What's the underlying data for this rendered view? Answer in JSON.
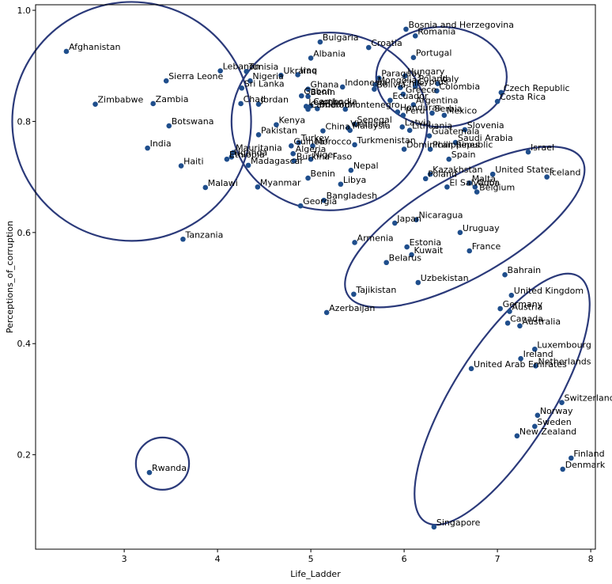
{
  "chart_data": {
    "type": "scatter",
    "xlabel": "Life_Ladder",
    "ylabel": "Perceptions_of_corruption",
    "xlim": [
      2.05,
      8.05
    ],
    "ylim": [
      0.03,
      1.01
    ],
    "xticks": [
      3,
      4,
      5,
      6,
      7,
      8
    ],
    "yticks": [
      0.2,
      0.4,
      0.6,
      0.8,
      1.0
    ],
    "xtick_labels": [
      "3",
      "4",
      "5",
      "6",
      "7",
      "8"
    ],
    "ytick_labels": [
      "0.2",
      "0.4",
      "0.6",
      "0.8",
      "1.0"
    ],
    "grid": false,
    "point_color": "#1f4e8c",
    "ellipse_color": "#2b3a7a",
    "points": [
      {
        "label": "Afghanistan",
        "x": 2.38,
        "y": 0.926
      },
      {
        "label": "Sierra Leone",
        "x": 3.45,
        "y": 0.873
      },
      {
        "label": "Zimbabwe",
        "x": 2.69,
        "y": 0.831
      },
      {
        "label": "Zambia",
        "x": 3.31,
        "y": 0.832
      },
      {
        "label": "Botswana",
        "x": 3.48,
        "y": 0.792
      },
      {
        "label": "India",
        "x": 3.25,
        "y": 0.752
      },
      {
        "label": "Haiti",
        "x": 3.61,
        "y": 0.72
      },
      {
        "label": "Malawi",
        "x": 3.87,
        "y": 0.681
      },
      {
        "label": "Tanzania",
        "x": 3.63,
        "y": 0.588
      },
      {
        "label": "Rwanda",
        "x": 3.27,
        "y": 0.168
      },
      {
        "label": "Lebanon",
        "x": 4.03,
        "y": 0.891
      },
      {
        "label": "Tunisia",
        "x": 4.31,
        "y": 0.89
      },
      {
        "label": "Nigeria",
        "x": 4.35,
        "y": 0.873
      },
      {
        "label": "Sri Lanka",
        "x": 4.26,
        "y": 0.86
      },
      {
        "label": "Ukraine",
        "x": 4.68,
        "y": 0.883
      },
      {
        "label": "Iraq",
        "x": 4.86,
        "y": 0.884
      },
      {
        "label": "Chad",
        "x": 4.25,
        "y": 0.832
      },
      {
        "label": "Jordan",
        "x": 4.44,
        "y": 0.831
      },
      {
        "label": "Bulgaria",
        "x": 5.1,
        "y": 0.943
      },
      {
        "label": "Albania",
        "x": 5.0,
        "y": 0.914
      },
      {
        "label": "Croatia",
        "x": 5.62,
        "y": 0.933
      },
      {
        "label": "Ghana",
        "x": 4.97,
        "y": 0.858
      },
      {
        "label": "Gabon",
        "x": 4.9,
        "y": 0.846
      },
      {
        "label": "Benin",
        "x": 4.97,
        "y": 0.845
      },
      {
        "label": "Cambodia",
        "x": 5.0,
        "y": 0.828
      },
      {
        "label": "Lesotho",
        "x": 4.95,
        "y": 0.827
      },
      {
        "label": "Cameroon",
        "x": 4.97,
        "y": 0.822
      },
      {
        "label": "Sudan",
        "x": 5.07,
        "y": 0.823
      },
      {
        "label": "Montenegro",
        "x": 5.37,
        "y": 0.822
      },
      {
        "label": "Indonesia",
        "x": 5.34,
        "y": 0.862
      },
      {
        "label": "Kenya",
        "x": 4.63,
        "y": 0.794
      },
      {
        "label": "Pakistan",
        "x": 4.44,
        "y": 0.776
      },
      {
        "label": "Senegal",
        "x": 5.47,
        "y": 0.795
      },
      {
        "label": "Malaysia",
        "x": 5.42,
        "y": 0.784
      },
      {
        "label": "Vietnam",
        "x": 5.4,
        "y": 0.788
      },
      {
        "label": "China",
        "x": 5.13,
        "y": 0.783
      },
      {
        "label": "Turkey",
        "x": 4.87,
        "y": 0.762
      },
      {
        "label": "Guinea",
        "x": 4.79,
        "y": 0.756
      },
      {
        "label": "Morocco",
        "x": 5.02,
        "y": 0.756
      },
      {
        "label": "Turkmenistan",
        "x": 5.47,
        "y": 0.758
      },
      {
        "label": "Algeria",
        "x": 4.81,
        "y": 0.742
      },
      {
        "label": "Mauritania",
        "x": 4.17,
        "y": 0.744
      },
      {
        "label": "Uganda",
        "x": 4.15,
        "y": 0.736
      },
      {
        "label": "Ethiopia",
        "x": 4.1,
        "y": 0.732
      },
      {
        "label": "Madagascar",
        "x": 4.33,
        "y": 0.721
      },
      {
        "label": "Burkina Faso",
        "x": 4.82,
        "y": 0.729
      },
      {
        "label": "Niger",
        "x": 5.0,
        "y": 0.732
      },
      {
        "label": "Myanmar",
        "x": 4.43,
        "y": 0.682
      },
      {
        "label": "Benin",
        "x": 4.97,
        "y": 0.698
      },
      {
        "label": "Nepal",
        "x": 5.43,
        "y": 0.712
      },
      {
        "label": "Libya",
        "x": 5.32,
        "y": 0.687
      },
      {
        "label": "Bangladesh",
        "x": 5.14,
        "y": 0.658
      },
      {
        "label": "Georgia",
        "x": 4.89,
        "y": 0.648
      },
      {
        "label": "Bosnia and Herzegovina",
        "x": 6.02,
        "y": 0.966
      },
      {
        "label": "Romania",
        "x": 6.12,
        "y": 0.954
      },
      {
        "label": "Portugal",
        "x": 6.1,
        "y": 0.915
      },
      {
        "label": "Paraguay",
        "x": 5.73,
        "y": 0.878
      },
      {
        "label": "Hungary",
        "x": 6.01,
        "y": 0.882
      },
      {
        "label": "Mongolia",
        "x": 5.69,
        "y": 0.866
      },
      {
        "label": "Poland",
        "x": 6.13,
        "y": 0.869
      },
      {
        "label": "Italy",
        "x": 6.36,
        "y": 0.868
      },
      {
        "label": "Colombia",
        "x": 6.35,
        "y": 0.855
      },
      {
        "label": "Bolivia",
        "x": 5.68,
        "y": 0.858
      },
      {
        "label": "Chile",
        "x": 5.96,
        "y": 0.861
      },
      {
        "label": "Cyprus",
        "x": 6.12,
        "y": 0.863
      },
      {
        "label": "Greece",
        "x": 5.99,
        "y": 0.849
      },
      {
        "label": "Ecuador",
        "x": 5.85,
        "y": 0.838
      },
      {
        "label": "Argentina",
        "x": 6.1,
        "y": 0.83
      },
      {
        "label": "Honduras",
        "x": 5.93,
        "y": 0.817
      },
      {
        "label": "Serbia",
        "x": 6.3,
        "y": 0.815
      },
      {
        "label": "Mexico",
        "x": 6.43,
        "y": 0.811
      },
      {
        "label": "Peru",
        "x": 5.99,
        "y": 0.811
      },
      {
        "label": "Latvia",
        "x": 5.98,
        "y": 0.79
      },
      {
        "label": "Lithuania",
        "x": 6.06,
        "y": 0.784
      },
      {
        "label": "Slovenia",
        "x": 6.65,
        "y": 0.785
      },
      {
        "label": "Guatemala",
        "x": 6.27,
        "y": 0.774
      },
      {
        "label": "Saudi Arabia",
        "x": 6.55,
        "y": 0.762
      },
      {
        "label": "Dominican Republic",
        "x": 6.0,
        "y": 0.75
      },
      {
        "label": "Philippines",
        "x": 6.28,
        "y": 0.75
      },
      {
        "label": "Spain",
        "x": 6.48,
        "y": 0.732
      },
      {
        "label": "Czech Republic",
        "x": 7.04,
        "y": 0.852
      },
      {
        "label": "Costa Rica",
        "x": 7.0,
        "y": 0.836
      },
      {
        "label": "Israel",
        "x": 7.33,
        "y": 0.745
      },
      {
        "label": "United States",
        "x": 6.95,
        "y": 0.705
      },
      {
        "label": "Iceland",
        "x": 7.53,
        "y": 0.7
      },
      {
        "label": "Kazakhstan",
        "x": 6.28,
        "y": 0.705
      },
      {
        "label": "Poland",
        "x": 6.23,
        "y": 0.697
      },
      {
        "label": "Malta",
        "x": 6.7,
        "y": 0.689
      },
      {
        "label": "El Salvador",
        "x": 6.46,
        "y": 0.682
      },
      {
        "label": "Cuba",
        "x": 6.76,
        "y": 0.682
      },
      {
        "label": "Belgium",
        "x": 6.78,
        "y": 0.673
      },
      {
        "label": "Japan",
        "x": 5.9,
        "y": 0.617
      },
      {
        "label": "Nicaragua",
        "x": 6.13,
        "y": 0.623
      },
      {
        "label": "Uruguay",
        "x": 6.6,
        "y": 0.6
      },
      {
        "label": "Armenia",
        "x": 5.47,
        "y": 0.582
      },
      {
        "label": "Estonia",
        "x": 6.03,
        "y": 0.574
      },
      {
        "label": "France",
        "x": 6.7,
        "y": 0.567
      },
      {
        "label": "Kuwait",
        "x": 6.08,
        "y": 0.56
      },
      {
        "label": "Belarus",
        "x": 5.81,
        "y": 0.546
      },
      {
        "label": "Bahrain",
        "x": 7.08,
        "y": 0.524
      },
      {
        "label": "Uzbekistan",
        "x": 6.15,
        "y": 0.51
      },
      {
        "label": "Tajikistan",
        "x": 5.46,
        "y": 0.489
      },
      {
        "label": "Azerbaijan",
        "x": 5.17,
        "y": 0.456
      },
      {
        "label": "United Kingdom",
        "x": 7.15,
        "y": 0.487
      },
      {
        "label": "Germany",
        "x": 7.03,
        "y": 0.463
      },
      {
        "label": "Austria",
        "x": 7.13,
        "y": 0.458
      },
      {
        "label": "Canada",
        "x": 7.11,
        "y": 0.437
      },
      {
        "label": "Australia",
        "x": 7.24,
        "y": 0.432
      },
      {
        "label": "Luxembourg",
        "x": 7.4,
        "y": 0.39
      },
      {
        "label": "Ireland",
        "x": 7.25,
        "y": 0.373
      },
      {
        "label": "Netherlands",
        "x": 7.41,
        "y": 0.36
      },
      {
        "label": "United Arab Emirates",
        "x": 6.72,
        "y": 0.355
      },
      {
        "label": "Switzerland",
        "x": 7.69,
        "y": 0.294
      },
      {
        "label": "Norway",
        "x": 7.43,
        "y": 0.271
      },
      {
        "label": "Sweden",
        "x": 7.4,
        "y": 0.251
      },
      {
        "label": "New Zealand",
        "x": 7.21,
        "y": 0.234
      },
      {
        "label": "Finland",
        "x": 7.79,
        "y": 0.194
      },
      {
        "label": "Denmark",
        "x": 7.7,
        "y": 0.174
      },
      {
        "label": "Singapore",
        "x": 6.32,
        "y": 0.07
      }
    ],
    "clusters": [
      {
        "cx": 3.08,
        "cy": 0.8,
        "rx": 1.28,
        "ry": 0.215,
        "angle": 12
      },
      {
        "cx": 5.2,
        "cy": 0.8,
        "rx": 1.05,
        "ry": 0.16,
        "angle": 0
      },
      {
        "cx": 6.4,
        "cy": 0.88,
        "rx": 0.7,
        "ry": 0.09,
        "angle": 0
      },
      {
        "cx": 6.65,
        "cy": 0.61,
        "rx": 1.45,
        "ry": 0.09,
        "angle": -30
      },
      {
        "cx": 7.05,
        "cy": 0.3,
        "rx": 1.55,
        "ry": 0.09,
        "angle": -58
      },
      {
        "cx": 3.41,
        "cy": 0.184,
        "rx": 0.285,
        "ry": 0.047,
        "angle": 0
      }
    ]
  }
}
